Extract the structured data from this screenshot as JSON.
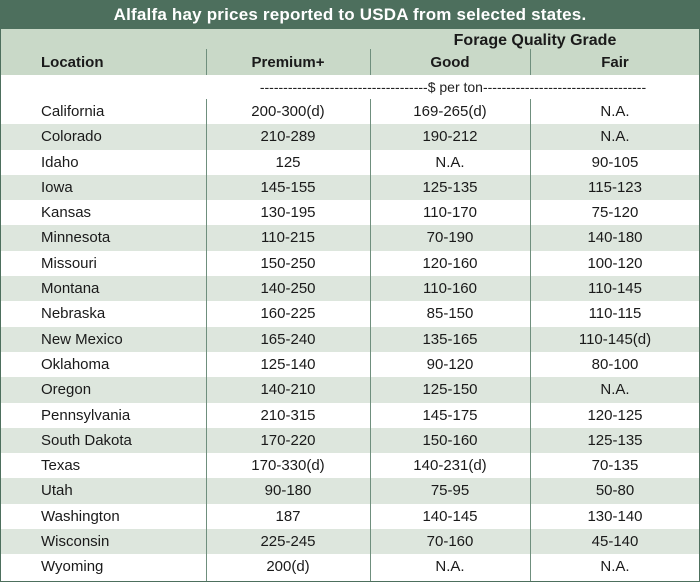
{
  "title": "Alfalfa hay prices reported to USDA from selected states.",
  "header": {
    "group_title": "Forage Quality Grade",
    "location": "Location",
    "premium": "Premium+",
    "good": "Good",
    "fair": "Fair"
  },
  "units": "------------------------------------$ per ton-----------------------------------",
  "colors": {
    "title_bg": "#4d6f5d",
    "header_bg": "#c9d9c8",
    "row_shade": "#dde6dd"
  },
  "rows": [
    {
      "location": "California",
      "premium": "200-300(d)",
      "good": "169-265(d)",
      "fair": "N.A."
    },
    {
      "location": "Colorado",
      "premium": "210-289",
      "good": "190-212",
      "fair": "N.A."
    },
    {
      "location": "Idaho",
      "premium": "125",
      "good": "N.A.",
      "fair": "90-105"
    },
    {
      "location": "Iowa",
      "premium": "145-155",
      "good": "125-135",
      "fair": "115-123"
    },
    {
      "location": "Kansas",
      "premium": "130-195",
      "good": "110-170",
      "fair": "75-120"
    },
    {
      "location": "Minnesota",
      "premium": "110-215",
      "good": "70-190",
      "fair": "140-180"
    },
    {
      "location": "Missouri",
      "premium": "150-250",
      "good": "120-160",
      "fair": "100-120"
    },
    {
      "location": "Montana",
      "premium": "140-250",
      "good": "110-160",
      "fair": "110-145"
    },
    {
      "location": "Nebraska",
      "premium": "160-225",
      "good": "85-150",
      "fair": "110-115"
    },
    {
      "location": "New Mexico",
      "premium": "165-240",
      "good": "135-165",
      "fair": "110-145(d)"
    },
    {
      "location": "Oklahoma",
      "premium": "125-140",
      "good": "90-120",
      "fair": "80-100"
    },
    {
      "location": "Oregon",
      "premium": "140-210",
      "good": "125-150",
      "fair": "N.A."
    },
    {
      "location": "Pennsylvania",
      "premium": "210-315",
      "good": "145-175",
      "fair": "120-125"
    },
    {
      "location": "South Dakota",
      "premium": "170-220",
      "good": "150-160",
      "fair": "125-135"
    },
    {
      "location": "Texas",
      "premium": "170-330(d)",
      "good": "140-231(d)",
      "fair": "70-135"
    },
    {
      "location": "Utah",
      "premium": "90-180",
      "good": "75-95",
      "fair": "50-80"
    },
    {
      "location": "Washington",
      "premium": "187",
      "good": "140-145",
      "fair": "130-140"
    },
    {
      "location": "Wisconsin",
      "premium": "225-245",
      "good": "70-160",
      "fair": "45-140"
    },
    {
      "location": "Wyoming",
      "premium": "200(d)",
      "good": "N.A.",
      "fair": "N.A."
    }
  ]
}
